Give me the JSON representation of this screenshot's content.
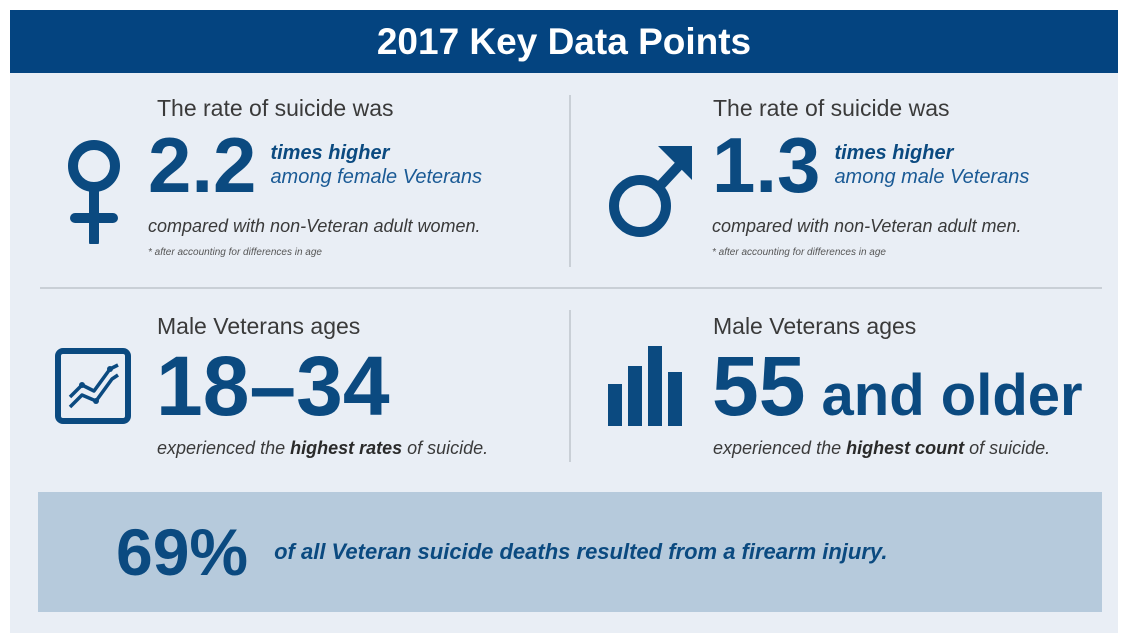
{
  "header": {
    "title": "2017 Key Data Points"
  },
  "female": {
    "lead": "The rate of suicide was",
    "value": "2.2",
    "emphasis": "times higher",
    "group": "among female Veterans",
    "comparison": "compared with non-Veteran adult women.",
    "footnote": "* after accounting for differences in age",
    "icon": "female-symbol-icon"
  },
  "male": {
    "lead": "The rate of suicide was",
    "value": "1.3",
    "emphasis": "times higher",
    "group": "among male Veterans",
    "comparison": "compared with non-Veteran adult men.",
    "footnote": "* after accounting for differences in age",
    "icon": "male-symbol-icon"
  },
  "rates": {
    "lead": "Male Veterans ages",
    "value": "18–34",
    "desc_pre": "experienced the ",
    "desc_bold": "highest rates",
    "desc_post": " of suicide.",
    "icon": "line-chart-icon"
  },
  "count": {
    "lead": "Male Veterans ages",
    "value_num": "55",
    "value_rest": " and older",
    "desc_pre": "experienced the ",
    "desc_bold": "highest count",
    "desc_post": " of suicide.",
    "icon": "bar-chart-icon"
  },
  "firearm": {
    "value": "69%",
    "text": "of all Veteran suicide deaths resulted from a firearm injury."
  },
  "colors": {
    "navy": "#044480",
    "text_blue": "#0b4a80",
    "background": "#e9eef5",
    "stat_bar": "#b6cadc"
  }
}
